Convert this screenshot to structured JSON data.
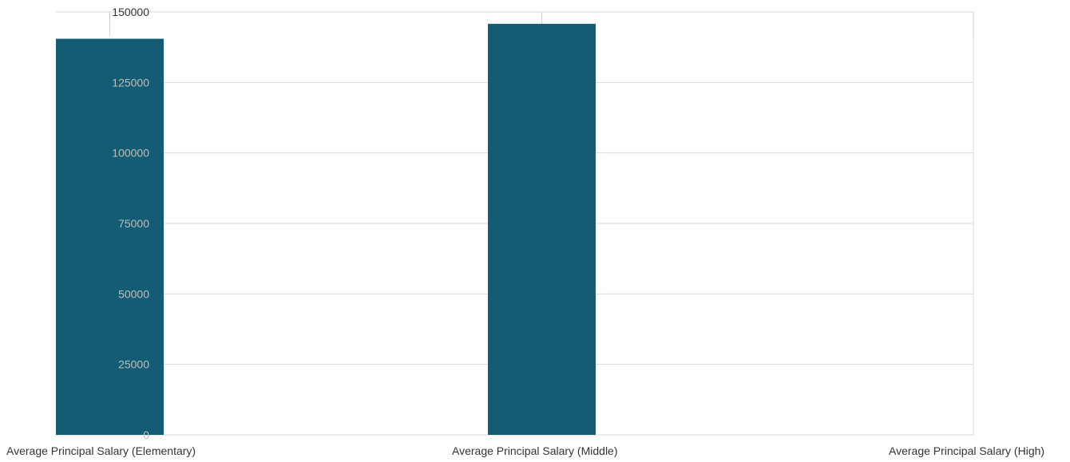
{
  "chart_data": {
    "type": "bar",
    "categories": [
      "Average Principal Salary (Elementary)",
      "Average Principal Salary (Middle)",
      "Average Principal Salary (High)"
    ],
    "series": [
      {
        "values": [
          140500,
          145800,
          null
        ]
      }
    ],
    "yticks": [
      "0",
      "25000",
      "50000",
      "75000",
      "100000",
      "125000",
      "150000"
    ],
    "ylim": [
      0,
      150000
    ],
    "grid": true,
    "title": "",
    "xlabel": "",
    "ylabel": "",
    "colors": {
      "bar": "#135c73",
      "grid": "#d9d9d9"
    }
  }
}
